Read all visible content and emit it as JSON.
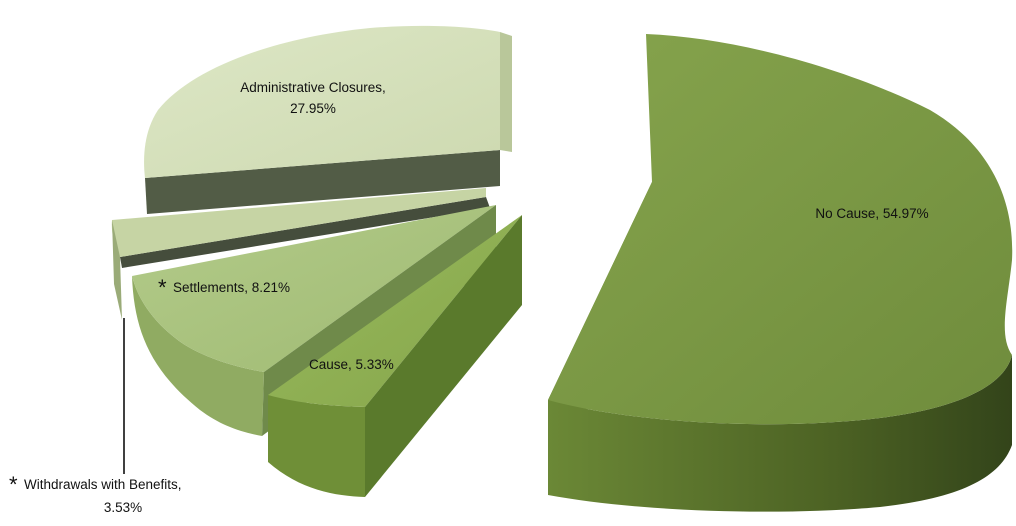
{
  "chart_data": {
    "type": "pie",
    "title": "",
    "style": "3d-exploded",
    "legend": "none",
    "slices": [
      {
        "label": "No Cause",
        "value": 54.97,
        "display": "No Cause, 54.97%",
        "asterisk": false,
        "color": "#7e9b48",
        "side_color": "#4e6326"
      },
      {
        "label": "Cause",
        "value": 5.33,
        "display": "Cause, 5.33%",
        "asterisk": false,
        "color": "#91b256",
        "side_color": "#5a7a2c"
      },
      {
        "label": "Withdrawals with Benefits",
        "value": 3.53,
        "display": "Withdrawals with Benefits, 3.53%",
        "asterisk": true,
        "color": "#c3d2a0",
        "side_color": "#434b3a"
      },
      {
        "label": "Settlements",
        "value": 8.21,
        "display": "Settlements, 8.21%",
        "asterisk": true,
        "color": "#a9c37e",
        "side_color": "#6f8a4a"
      },
      {
        "label": "Administrative Closures",
        "value": 27.95,
        "display": "Administrative Closures, 27.95%",
        "asterisk": false,
        "color": "#d6e2bd",
        "side_color": "#545f48"
      }
    ],
    "label_lines": {
      "no_cause": "No Cause, 54.97%",
      "cause": "Cause, 5.33%",
      "settlements": "Settlements, 8.21%",
      "admin_line1": "Administrative Closures,",
      "admin_line2": "27.95%",
      "withdrawals_line1": "Withdrawals with Benefits,",
      "withdrawals_line2": "3.53%",
      "asterisk": "*"
    }
  }
}
